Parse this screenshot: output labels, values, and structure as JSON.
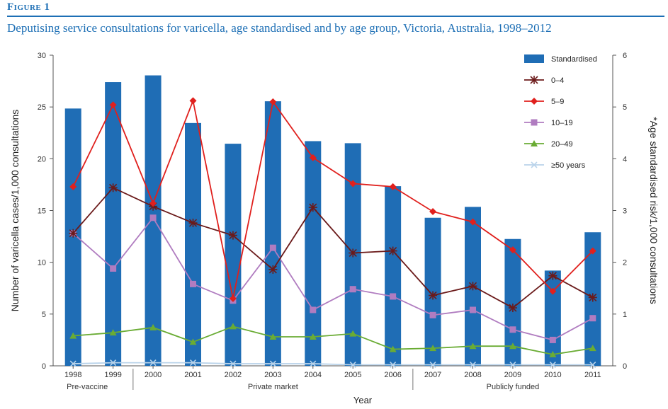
{
  "figure": {
    "label": "Figure 1",
    "title": "Deputising service consultations for varicella, age standardised and by age group, Victoria, Australia, 1998–2012"
  },
  "chart_data": {
    "type": "bar",
    "categories": [
      "1998",
      "1999",
      "2000",
      "2001",
      "2002",
      "2003",
      "2004",
      "2005",
      "2006",
      "2007",
      "2008",
      "2009",
      "2010",
      "2011"
    ],
    "xlabel": "Year",
    "ylabel": "Number of varicella cases/1,000 consultations",
    "ylabel_right": "*Age standardised risk/1,000 consultations",
    "ylim": [
      0,
      30
    ],
    "ylim_right": [
      0,
      6
    ],
    "yticks": [
      "0",
      "5",
      "10",
      "15",
      "20",
      "25",
      "30"
    ],
    "yticks_right": [
      "0",
      "1",
      "2",
      "3",
      "4",
      "5",
      "6"
    ],
    "periods": [
      "Pre-vaccine",
      "Private market",
      "Publicly funded"
    ],
    "legend_position": "top-right",
    "grid": false,
    "bars": {
      "name": "Standardised",
      "axis": "right",
      "color": "#1f6db5",
      "values": [
        4.97,
        5.48,
        5.61,
        4.69,
        4.29,
        5.11,
        4.34,
        4.3,
        3.47,
        2.86,
        3.07,
        2.45,
        1.84,
        2.58
      ]
    },
    "series": [
      {
        "name": "0–4",
        "axis": "left",
        "color": "#6b1a1a",
        "marker": "star",
        "values": [
          12.8,
          17.2,
          15.4,
          13.8,
          12.6,
          9.3,
          15.3,
          10.9,
          11.1,
          6.8,
          7.7,
          5.6,
          8.7,
          6.6
        ]
      },
      {
        "name": "5–9",
        "axis": "left",
        "color": "#e0201d",
        "marker": "diamond",
        "values": [
          17.3,
          25.2,
          15.7,
          25.6,
          6.5,
          25.5,
          20.1,
          17.6,
          17.3,
          14.9,
          13.9,
          11.2,
          7.2,
          11.1
        ]
      },
      {
        "name": "10–19",
        "axis": "left",
        "color": "#b07cc0",
        "marker": "square",
        "values": [
          12.8,
          9.4,
          14.3,
          7.9,
          6.3,
          11.4,
          5.4,
          7.4,
          6.7,
          4.9,
          5.4,
          3.5,
          2.5,
          4.6
        ]
      },
      {
        "name": "20–49",
        "axis": "left",
        "color": "#6aac34",
        "marker": "triangle",
        "values": [
          2.9,
          3.2,
          3.7,
          2.3,
          3.8,
          2.8,
          2.8,
          3.1,
          1.6,
          1.7,
          1.9,
          1.9,
          1.1,
          1.7
        ]
      },
      {
        "name": "≥50 years",
        "axis": "left",
        "color": "#b9d3ea",
        "marker": "x",
        "values": [
          0.2,
          0.3,
          0.3,
          0.3,
          0.2,
          0.2,
          0.2,
          0.1,
          0.1,
          0.1,
          0.1,
          0.1,
          0.1,
          0.1
        ]
      }
    ]
  }
}
